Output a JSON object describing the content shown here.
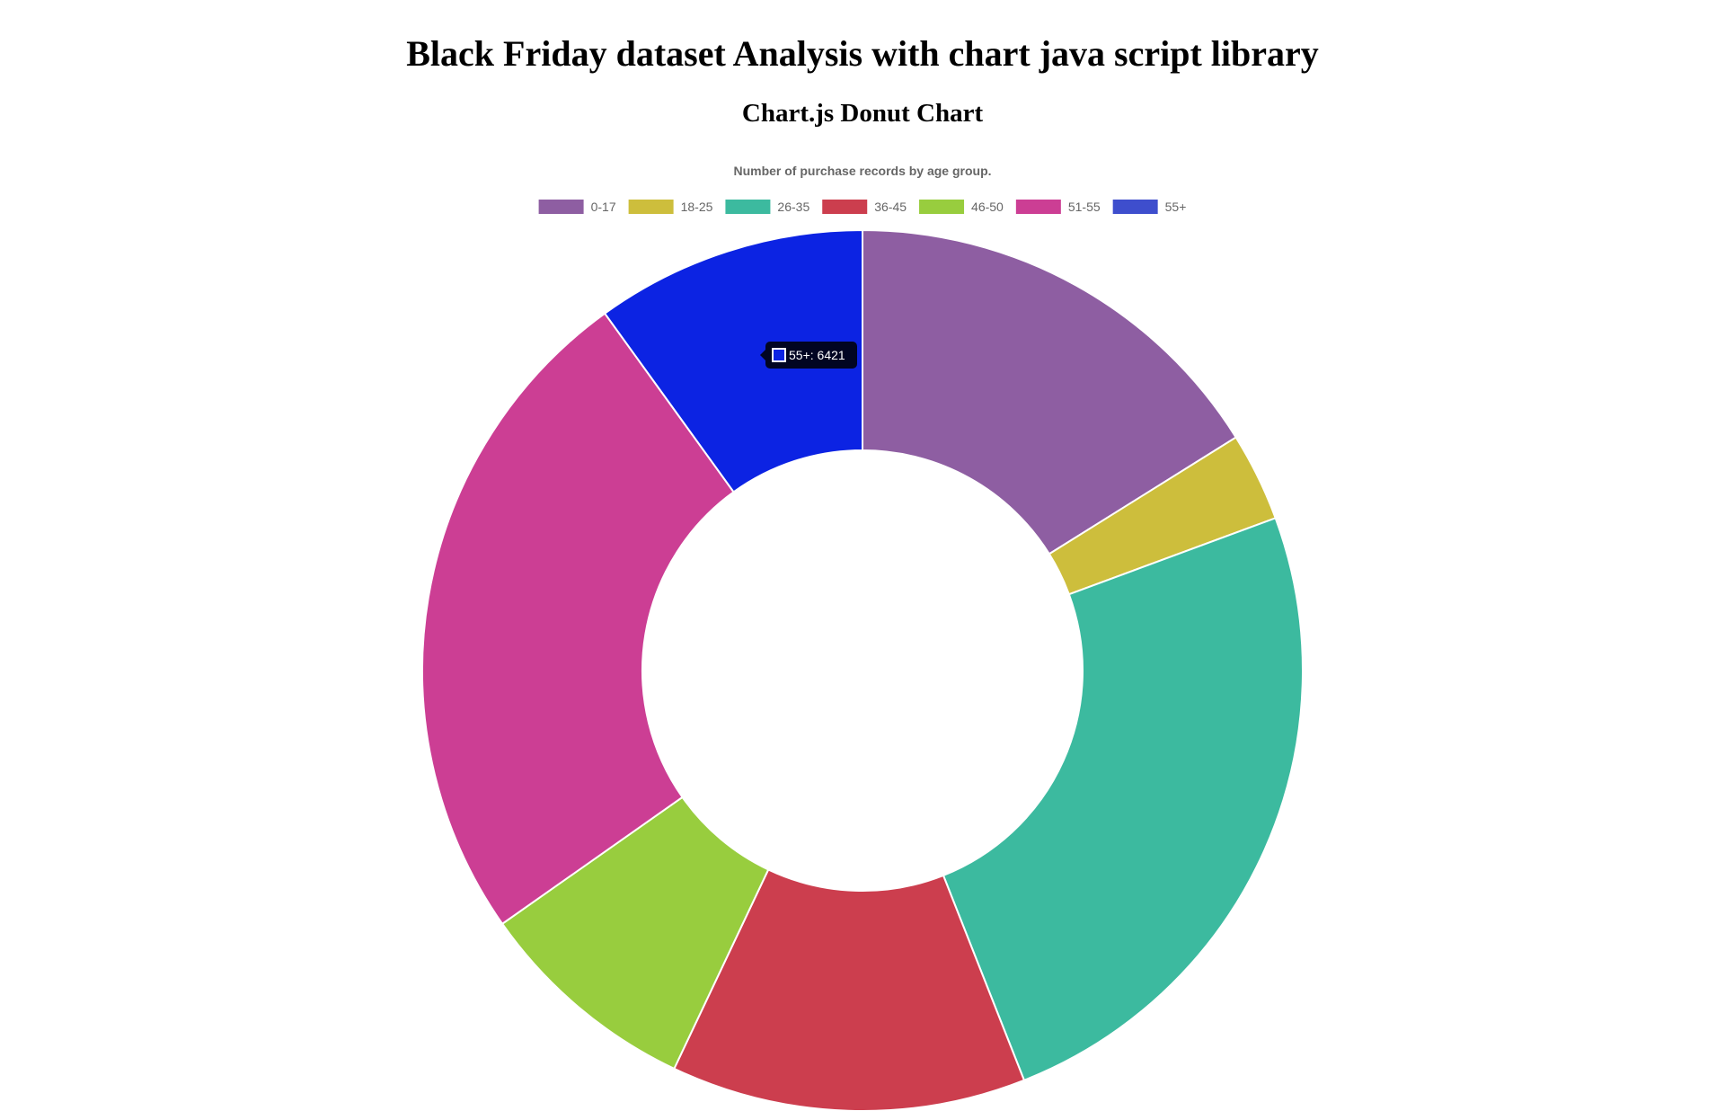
{
  "page": {
    "title": "Black Friday dataset Analysis with chart java script library",
    "subtitle": "Chart.js Donut Chart"
  },
  "chart_data": {
    "type": "pie",
    "variant": "doughnut",
    "title": "Number of purchase records by age group.",
    "legend_position": "top",
    "categories": [
      "0-17",
      "18-25",
      "26-35",
      "36-45",
      "46-50",
      "51-55",
      "55+"
    ],
    "values": [
      10400,
      2100,
      15900,
      8400,
      5300,
      16000,
      6421
    ],
    "colors": [
      "#8e5ea2",
      "#cdbe3c",
      "#3cba9f",
      "#cc3e4e",
      "#98cd3e",
      "#cc3e94",
      "#0c23e3"
    ],
    "legend_colors": [
      "#8e5ea2",
      "#cdbe3c",
      "#3cba9f",
      "#cc3e4e",
      "#98cd3e",
      "#cc3e94",
      "#3e4ecd"
    ],
    "tooltip": {
      "label": "55+: 6421",
      "category_index": 6
    }
  }
}
